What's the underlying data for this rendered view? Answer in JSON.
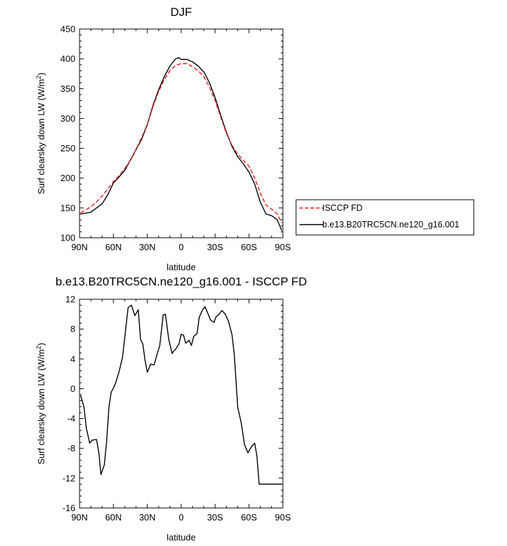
{
  "chart_data": [
    {
      "type": "line",
      "title": "DJF",
      "xlabel": "latitude",
      "ylabel": "Surf clearsky down LW (W/m²)",
      "ylabel_main": "Surf clearsky down LW (W/m",
      "ylabel_sup": "2",
      "ylabel_close": ")",
      "xlim": [
        90,
        -90
      ],
      "ylim": [
        100,
        450
      ],
      "x_ticks": [
        90,
        60,
        30,
        0,
        -30,
        -60,
        -90
      ],
      "x_tick_labels": [
        "90N",
        "60N",
        "30N",
        "0",
        "30S",
        "60S",
        "90S"
      ],
      "y_ticks": [
        100,
        150,
        200,
        250,
        300,
        350,
        400,
        450
      ],
      "y_tick_labels": [
        "100",
        "150",
        "200",
        "250",
        "300",
        "350",
        "400",
        "450"
      ],
      "legend": [
        {
          "label": "ISCCP FD",
          "color": "#e41a1c",
          "dash": "dashed"
        },
        {
          "label": "b.e13.B20TRC5CN.ne120_g16.001",
          "color": "#000000",
          "dash": "solid"
        }
      ],
      "series": [
        {
          "name": "b.e13.B20TRC5CN.ne120_g16.001",
          "color": "#000000",
          "dash": "solid",
          "x": [
            89,
            85,
            80,
            75,
            70,
            65,
            60,
            55,
            50,
            45,
            40,
            35,
            30,
            25,
            20,
            15,
            10,
            5,
            2,
            0,
            -5,
            -10,
            -15,
            -20,
            -25,
            -30,
            -35,
            -40,
            -45,
            -50,
            -55,
            -60,
            -65,
            -70,
            -75,
            -80,
            -85,
            -89
          ],
          "y": [
            140,
            141,
            143,
            150,
            157,
            172,
            192,
            202,
            213,
            230,
            248,
            265,
            290,
            322,
            348,
            370,
            388,
            400,
            402,
            399,
            399,
            395,
            388,
            378,
            360,
            335,
            305,
            277,
            253,
            236,
            224,
            210,
            190,
            160,
            140,
            137,
            130,
            112
          ]
        },
        {
          "name": "ISCCP FD",
          "color": "#e41a1c",
          "dash": "dashed",
          "x": [
            89,
            85,
            80,
            75,
            70,
            65,
            60,
            55,
            50,
            45,
            40,
            35,
            30,
            25,
            20,
            15,
            10,
            5,
            0,
            -5,
            -10,
            -15,
            -20,
            -25,
            -30,
            -35,
            -40,
            -45,
            -50,
            -55,
            -60,
            -65,
            -70,
            -75,
            -80,
            -85,
            -89
          ],
          "y": [
            142,
            146,
            152,
            160,
            170,
            182,
            194,
            204,
            216,
            230,
            248,
            268,
            290,
            320,
            345,
            365,
            380,
            389,
            392,
            392,
            387,
            380,
            370,
            353,
            330,
            302,
            275,
            255,
            240,
            230,
            220,
            200,
            175,
            155,
            148,
            140,
            125
          ]
        }
      ]
    },
    {
      "type": "line",
      "title": "b.e13.B20TRC5CN.ne120_g16.001 - ISCCP FD",
      "xlabel": "latitude",
      "ylabel": "Surf clearsky down LW (W/m²)",
      "ylabel_main": "Surf clearsky down LW (W/m",
      "ylabel_sup": "2",
      "ylabel_close": ")",
      "xlim": [
        90,
        -90
      ],
      "ylim": [
        -16,
        12
      ],
      "x_ticks": [
        90,
        60,
        30,
        0,
        -30,
        -60,
        -90
      ],
      "x_tick_labels": [
        "90N",
        "60N",
        "30N",
        "0",
        "30S",
        "60S",
        "90S"
      ],
      "y_ticks": [
        -16,
        -12,
        -8,
        -4,
        0,
        4,
        8,
        12
      ],
      "y_tick_labels": [
        "-16",
        "-12",
        "-8",
        "-4",
        "0",
        "4",
        "8",
        "12"
      ],
      "series": [
        {
          "name": "b.e13.B20TRC5CN.ne120_g16.001 - ISCCP FD",
          "color": "#000000",
          "dash": "solid",
          "x": [
            89,
            86,
            84,
            81,
            79,
            75,
            73,
            71,
            68,
            66,
            64,
            62,
            60,
            58,
            55,
            52,
            50,
            47,
            44,
            41,
            38,
            36,
            34,
            32,
            30,
            27,
            24,
            21,
            19,
            16,
            14,
            11,
            8,
            7,
            5,
            2,
            0,
            -2,
            -4,
            -7,
            -9,
            -11,
            -14,
            -16,
            -19,
            -21,
            -23,
            -26,
            -29,
            -31,
            -33,
            -36,
            -39,
            -42,
            -45,
            -47,
            -50,
            -53,
            -56,
            -59,
            -62,
            -65,
            -67,
            -69,
            -72,
            -74,
            -77,
            -79,
            -82,
            -84,
            -87,
            -89
          ],
          "y": [
            -0.9,
            -2.5,
            -5.3,
            -7.3,
            -6.9,
            -6.8,
            -8.5,
            -11.5,
            -10.2,
            -7.0,
            -2.5,
            -0.5,
            0.1,
            0.8,
            2.3,
            4.2,
            6.8,
            10.9,
            11.2,
            9.8,
            10.6,
            6.6,
            6.0,
            3.8,
            2.2,
            3.3,
            3.2,
            4.8,
            5.8,
            9.9,
            10.0,
            6.6,
            4.7,
            5.0,
            5.3,
            6.0,
            7.3,
            7.2,
            6.1,
            6.5,
            5.8,
            7.0,
            7.4,
            9.6,
            10.6,
            11.0,
            10.3,
            9.2,
            8.9,
            9.7,
            9.9,
            10.5,
            10.0,
            9.0,
            7.2,
            4.5,
            -2.5,
            -4.5,
            -7.5,
            -8.6,
            -7.8,
            -7.3,
            -9.0,
            -12.8,
            -12.8,
            -12.8,
            -12.8,
            -12.8,
            -12.8,
            -12.8,
            -12.8,
            -12.8
          ]
        }
      ]
    }
  ]
}
